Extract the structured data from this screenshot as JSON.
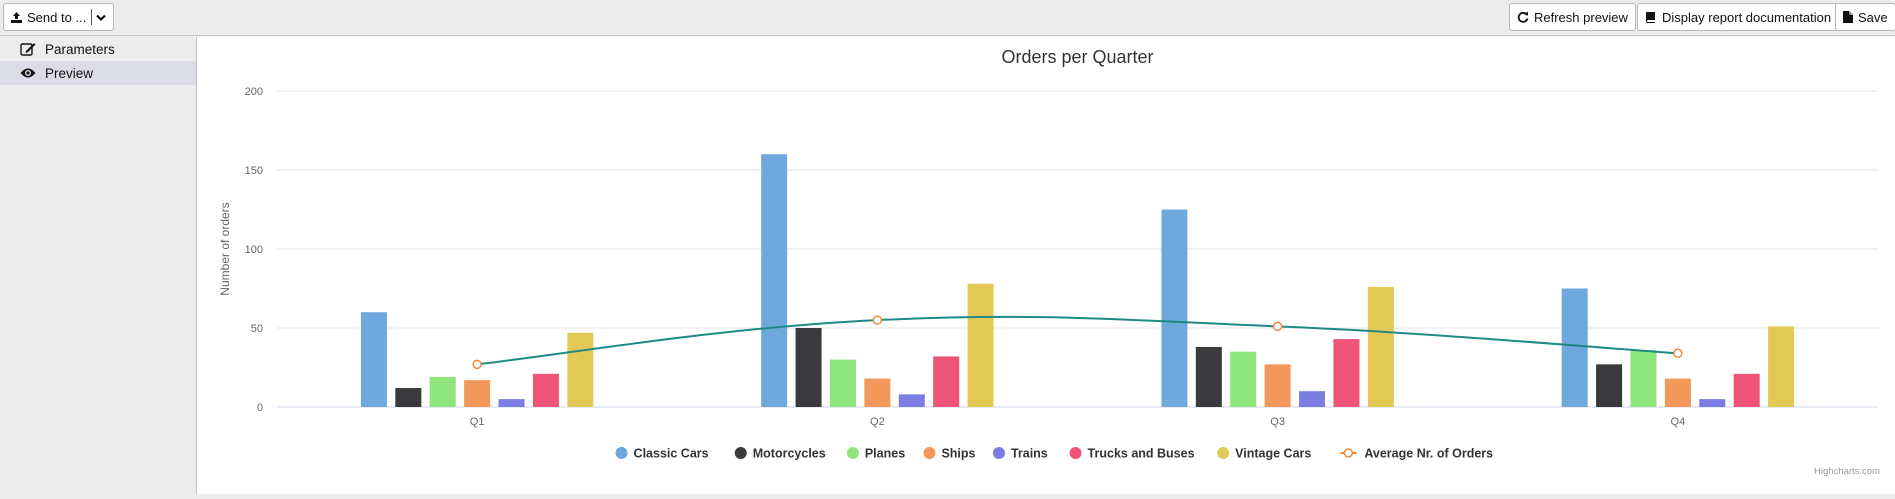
{
  "toolbar": {
    "send_label": "Send to ...",
    "refresh_label": "Refresh preview",
    "docs_label": "Display report documentation",
    "save_label": "Save"
  },
  "sidebar": {
    "items": [
      {
        "label": "Parameters",
        "icon": "edit-icon",
        "active": false
      },
      {
        "label": "Preview",
        "icon": "eye-icon",
        "active": true
      }
    ]
  },
  "chart_data": {
    "type": "bar",
    "title": "Orders per Quarter",
    "ylabel": "Number of orders",
    "xlabel": "",
    "ylim": [
      0,
      200
    ],
    "yticks": [
      0,
      50,
      100,
      150,
      200
    ],
    "grid": true,
    "legend": "bottom-center",
    "credits": "Highcharts.com",
    "categories": [
      "Q1",
      "Q2",
      "Q3",
      "Q4"
    ],
    "series": [
      {
        "name": "Classic Cars",
        "color": "#6fa8dc",
        "values": [
          60,
          160,
          125,
          75
        ]
      },
      {
        "name": "Motorcycles",
        "color": "#3a3a3d",
        "values": [
          12,
          50,
          38,
          27
        ]
      },
      {
        "name": "Planes",
        "color": "#8ee57b",
        "values": [
          19,
          30,
          35,
          36
        ]
      },
      {
        "name": "Ships",
        "color": "#f4975a",
        "values": [
          17,
          18,
          27,
          18
        ]
      },
      {
        "name": "Trains",
        "color": "#7b7ee0",
        "values": [
          5,
          8,
          10,
          5
        ]
      },
      {
        "name": "Trucks and Buses",
        "color": "#ee5477",
        "values": [
          21,
          32,
          43,
          21
        ]
      },
      {
        "name": "Vintage Cars",
        "color": "#e2c955",
        "values": [
          47,
          78,
          76,
          51
        ]
      }
    ],
    "line_series": {
      "name": "Average Nr. of Orders",
      "type": "spline",
      "color": "#1f8a84",
      "marker_color": "#f08a3a",
      "values": [
        27,
        55,
        51,
        34
      ]
    }
  }
}
